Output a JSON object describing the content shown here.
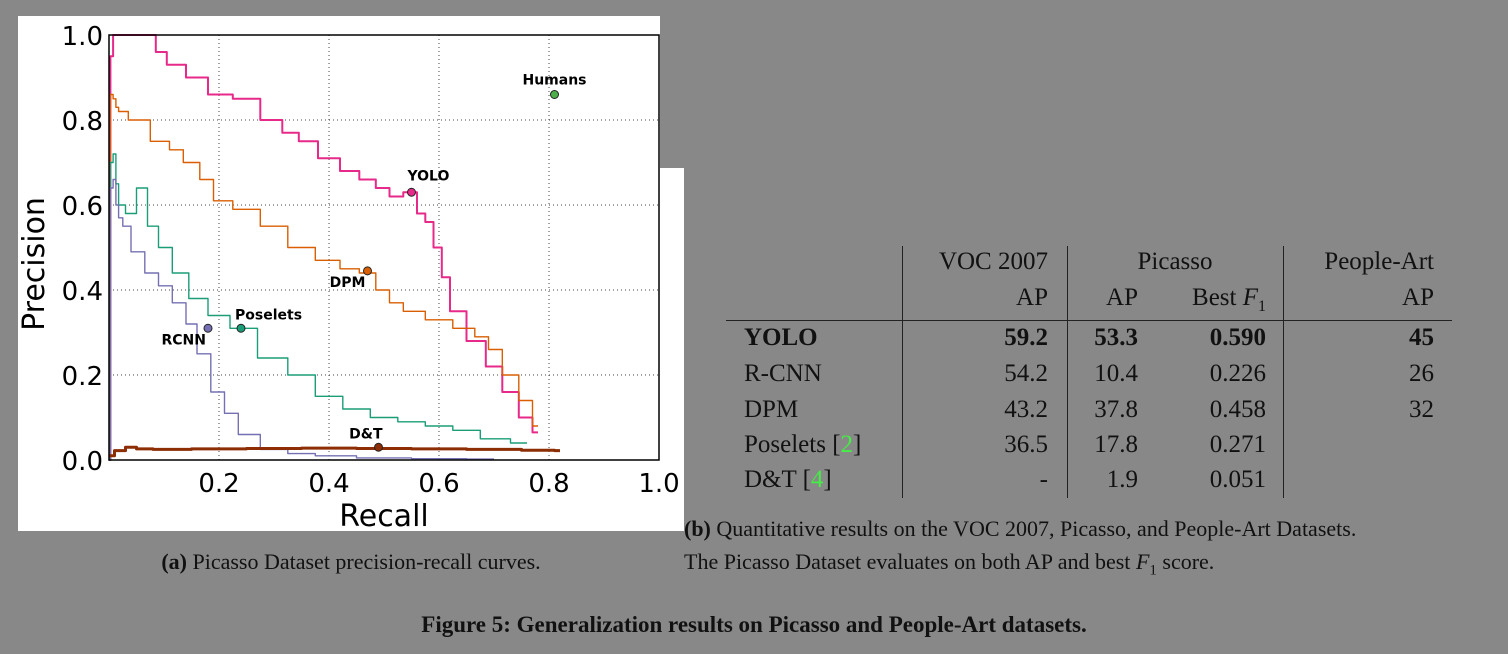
{
  "chart_data": {
    "type": "line",
    "xlabel": "Recall",
    "ylabel": "Precision",
    "xlim": [
      0,
      1.0
    ],
    "ylim": [
      0,
      1.0
    ],
    "xticks": [
      "0.2",
      "0.4",
      "0.6",
      "0.8",
      "1.0"
    ],
    "yticks": [
      "0.0",
      "0.2",
      "0.4",
      "0.6",
      "0.8",
      "1.0"
    ],
    "grid": true,
    "series": [
      {
        "name": "YOLO",
        "color": "#e7298a",
        "x": [
          0.0,
          0.005,
          0.01,
          0.015,
          0.02,
          0.05,
          0.08,
          0.09,
          0.12,
          0.16,
          0.2,
          0.25,
          0.3,
          0.33,
          0.36,
          0.4,
          0.44,
          0.47,
          0.5,
          0.52,
          0.55,
          0.57,
          0.58,
          0.6,
          0.61,
          0.63,
          0.67,
          0.7,
          0.73,
          0.76,
          0.78
        ],
        "y": [
          0.0,
          0.95,
          1.0,
          1.0,
          1.0,
          1.0,
          1.0,
          0.96,
          0.93,
          0.9,
          0.86,
          0.85,
          0.8,
          0.77,
          0.75,
          0.71,
          0.68,
          0.66,
          0.64,
          0.62,
          0.63,
          0.58,
          0.56,
          0.5,
          0.43,
          0.35,
          0.28,
          0.22,
          0.16,
          0.1,
          0.065
        ],
        "label": "YOLO",
        "marker": [
          0.55,
          0.63
        ],
        "label_pos": "above-right"
      },
      {
        "name": "DPM",
        "color": "#d95f02",
        "x": [
          0.0,
          0.005,
          0.01,
          0.015,
          0.02,
          0.05,
          0.1,
          0.12,
          0.15,
          0.18,
          0.2,
          0.25,
          0.3,
          0.35,
          0.4,
          0.44,
          0.47,
          0.5,
          0.52,
          0.55,
          0.6,
          0.65,
          0.68,
          0.7,
          0.73,
          0.76,
          0.78
        ],
        "y": [
          0.0,
          0.86,
          0.85,
          0.83,
          0.82,
          0.8,
          0.75,
          0.73,
          0.7,
          0.66,
          0.61,
          0.59,
          0.55,
          0.5,
          0.47,
          0.45,
          0.44,
          0.4,
          0.37,
          0.35,
          0.33,
          0.31,
          0.29,
          0.26,
          0.2,
          0.14,
          0.08
        ],
        "label": "DPM",
        "marker": [
          0.47,
          0.445
        ],
        "label_pos": "below-left"
      },
      {
        "name": "Poselets",
        "color": "#1b9e77",
        "x": [
          0.0,
          0.005,
          0.01,
          0.015,
          0.02,
          0.04,
          0.06,
          0.08,
          0.1,
          0.13,
          0.16,
          0.2,
          0.24,
          0.3,
          0.35,
          0.4,
          0.45,
          0.5,
          0.55,
          0.6,
          0.65,
          0.7,
          0.76
        ],
        "y": [
          0.0,
          0.7,
          0.72,
          0.65,
          0.6,
          0.58,
          0.64,
          0.55,
          0.5,
          0.44,
          0.38,
          0.34,
          0.31,
          0.24,
          0.2,
          0.15,
          0.12,
          0.1,
          0.09,
          0.08,
          0.07,
          0.05,
          0.04
        ],
        "label": "Poselets",
        "marker": [
          0.24,
          0.31
        ],
        "label_pos": "above"
      },
      {
        "name": "RCNN",
        "color": "#7570b3",
        "x": [
          0.0,
          0.005,
          0.01,
          0.015,
          0.02,
          0.03,
          0.05,
          0.08,
          0.1,
          0.13,
          0.15,
          0.17,
          0.2,
          0.22,
          0.25,
          0.3,
          0.35,
          0.4,
          0.5,
          0.6,
          0.7
        ],
        "y": [
          0.0,
          0.64,
          0.66,
          0.6,
          0.57,
          0.55,
          0.49,
          0.44,
          0.41,
          0.37,
          0.32,
          0.25,
          0.16,
          0.11,
          0.06,
          0.025,
          0.015,
          0.01,
          0.005,
          0.003,
          0.002
        ],
        "label": "RCNN",
        "marker": [
          0.18,
          0.31
        ],
        "label_pos": "left"
      },
      {
        "name": "D&T",
        "color": "#8c2d04",
        "x": [
          0.0,
          0.02,
          0.04,
          0.06,
          0.1,
          0.2,
          0.3,
          0.4,
          0.5,
          0.6,
          0.7,
          0.8,
          0.82
        ],
        "y": [
          0.01,
          0.022,
          0.03,
          0.026,
          0.025,
          0.026,
          0.027,
          0.028,
          0.027,
          0.026,
          0.025,
          0.023,
          0.022
        ],
        "label": "D&T",
        "marker": [
          0.49,
          0.03
        ],
        "label_pos": "above-left"
      }
    ],
    "points": [
      {
        "name": "Humans",
        "x": 0.81,
        "y": 0.86,
        "color": "#4daf4a",
        "label": "Humans"
      }
    ]
  },
  "captions": {
    "a_tag": "(a)",
    "a_text": " Picasso Dataset precision-recall curves.",
    "b_tag": "(b)",
    "b_line1": " Quantitative results on the VOC 2007, Picasso, and People-Art Datasets.",
    "b_line2_pre": "The Picasso Dataset evaluates on both AP and best ",
    "b_line2_f": "F",
    "b_line2_sub": "1",
    "b_line2_post": " score.",
    "figure_label": "Figure 5:",
    "figure_text": " Generalization results on Picasso and People-Art datasets."
  },
  "table": {
    "header1": {
      "voc": "VOC 2007",
      "picasso": "Picasso",
      "peopleart": "People-Art"
    },
    "header2": {
      "voc_ap": "AP",
      "picasso_ap": "AP",
      "picasso_f1_pre": "Best ",
      "picasso_f1_f": "F",
      "picasso_f1_sub": "1",
      "peopleart_ap": "AP"
    },
    "rows": [
      {
        "name": "YOLO",
        "ref": "",
        "voc": "59.2",
        "pap": "53.3",
        "f1": "0.590",
        "pa": "45"
      },
      {
        "name": "R-CNN",
        "ref": "",
        "voc": "54.2",
        "pap": "10.4",
        "f1": "0.226",
        "pa": "26"
      },
      {
        "name": "DPM",
        "ref": "",
        "voc": "43.2",
        "pap": "37.8",
        "f1": "0.458",
        "pa": "32"
      },
      {
        "name": "Poselets ",
        "ref": "2",
        "voc": "36.5",
        "pap": "17.8",
        "f1": "0.271",
        "pa": ""
      },
      {
        "name": "D&T ",
        "ref": "4",
        "voc": "-",
        "pap": "1.9",
        "f1": "0.051",
        "pa": ""
      }
    ]
  }
}
